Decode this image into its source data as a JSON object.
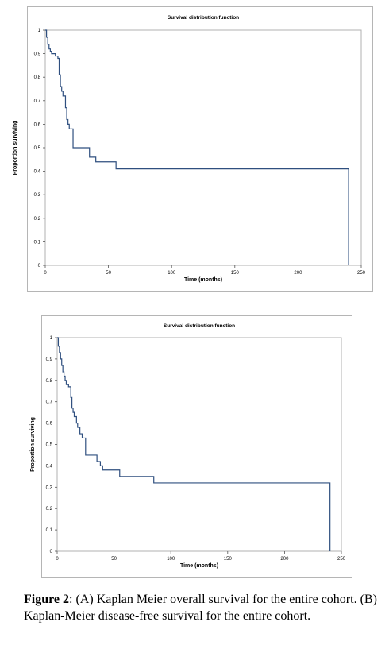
{
  "chart_data": [
    {
      "type": "line",
      "title": "Survival distribution function",
      "xlabel": "Time (months)",
      "ylabel": "Proportion surviving",
      "xlim": [
        0,
        250
      ],
      "ylim": [
        0,
        1
      ],
      "x_ticks": [
        0,
        50,
        100,
        150,
        200,
        250
      ],
      "x_tick_labels": [
        "0",
        "50",
        "100",
        "150",
        "200",
        "250"
      ],
      "y_ticks": [
        0,
        0.1,
        0.2,
        0.3,
        0.4,
        0.5,
        0.6,
        0.7,
        0.8,
        0.9,
        1
      ],
      "y_tick_labels": [
        "0",
        "0.1",
        "0.2",
        "0.3",
        "0.4",
        "0.5",
        "0.6",
        "0.7",
        "0.8",
        "0.9",
        "1"
      ],
      "grid": false,
      "step": true,
      "line_color": "#2f4f7f",
      "series": [
        {
          "x": [
            0,
            1,
            2,
            3,
            4,
            5,
            6,
            7,
            8,
            9,
            10,
            11,
            12,
            13,
            14,
            15,
            16,
            17,
            18,
            19,
            20,
            21,
            22,
            23,
            24,
            30,
            35,
            37,
            40,
            45,
            50,
            55,
            56,
            60,
            100,
            150,
            200,
            239,
            240
          ],
          "y": [
            1,
            0.97,
            0.94,
            0.92,
            0.91,
            0.9,
            0.9,
            0.9,
            0.89,
            0.89,
            0.88,
            0.81,
            0.76,
            0.74,
            0.72,
            0.72,
            0.67,
            0.62,
            0.6,
            0.58,
            0.58,
            0.58,
            0.5,
            0.5,
            0.5,
            0.5,
            0.46,
            0.46,
            0.44,
            0.44,
            0.44,
            0.44,
            0.41,
            0.41,
            0.41,
            0.41,
            0.41,
            0.41,
            0
          ]
        }
      ]
    },
    {
      "type": "line",
      "title": "Survival distribution function",
      "xlabel": "Time (months)",
      "ylabel": "Proportion surviving",
      "xlim": [
        0,
        250
      ],
      "ylim": [
        0,
        1
      ],
      "x_ticks": [
        0,
        50,
        100,
        150,
        200,
        250
      ],
      "x_tick_labels": [
        "0",
        "50",
        "100",
        "150",
        "200",
        "250"
      ],
      "y_ticks": [
        0,
        0.1,
        0.2,
        0.3,
        0.4,
        0.5,
        0.6,
        0.7,
        0.8,
        0.9,
        1
      ],
      "y_tick_labels": [
        "0",
        "0.1",
        "0.2",
        "0.3",
        "0.4",
        "0.5",
        "0.6",
        "0.7",
        "0.8",
        "0.9",
        "1"
      ],
      "grid": false,
      "step": true,
      "line_color": "#2f4f7f",
      "series": [
        {
          "x": [
            0,
            1,
            2,
            3,
            4,
            5,
            6,
            7,
            8,
            9,
            10,
            11,
            12,
            13,
            14,
            15,
            16,
            17,
            18,
            20,
            22,
            24,
            25,
            30,
            33,
            35,
            38,
            40,
            45,
            50,
            55,
            60,
            85,
            100,
            150,
            200,
            239,
            240
          ],
          "y": [
            1,
            0.96,
            0.93,
            0.9,
            0.87,
            0.84,
            0.82,
            0.8,
            0.78,
            0.78,
            0.77,
            0.77,
            0.72,
            0.67,
            0.65,
            0.63,
            0.63,
            0.6,
            0.58,
            0.55,
            0.53,
            0.53,
            0.45,
            0.45,
            0.45,
            0.42,
            0.4,
            0.38,
            0.38,
            0.38,
            0.35,
            0.35,
            0.32,
            0.32,
            0.32,
            0.32,
            0.32,
            0
          ]
        }
      ]
    }
  ],
  "caption": {
    "label": "Figure 2",
    "text": ": (A) Kaplan Meier overall survival for the entire cohort. (B) Kaplan-Meier disease-free survival for the entire cohort."
  }
}
